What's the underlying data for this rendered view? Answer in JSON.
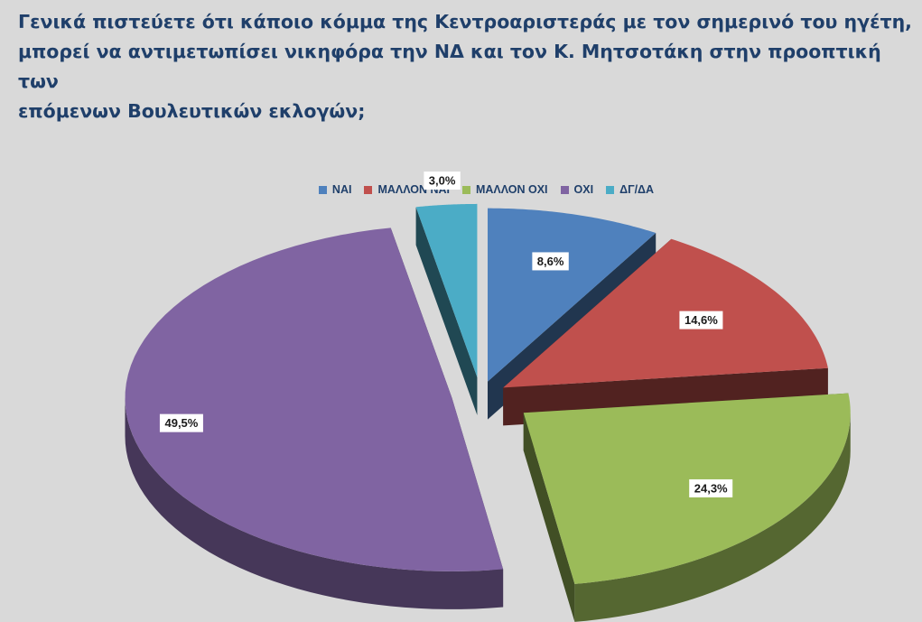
{
  "question": "Γενικά πιστεύετε ότι κάποιο κόμμα της Κεντροαριστεράς με τον σημερινό του ηγέτη,\nμπορεί να αντιμετωπίσει νικηφόρα την ΝΔ και τον Κ. Μητσοτάκη στην προοπτική των\nεπόμενων Βουλευτικών εκλογών;",
  "chart_data": {
    "type": "pie",
    "style": "3d-exploded",
    "legend_position": "top",
    "categories": [
      "ΝΑΙ",
      "ΜΑΛΛΟΝ ΝΑΙ",
      "ΜΑΛΛΟΝ ΟΧΙ",
      "ΟΧΙ",
      "ΔΓ/ΔΑ"
    ],
    "values": [
      8.6,
      14.6,
      24.3,
      49.5,
      3.0
    ],
    "labels": [
      "8,6%",
      "14,6%",
      "24,3%",
      "49,5%",
      "3,0%"
    ],
    "colors": [
      "#4f81bd",
      "#c0504d",
      "#9bbb59",
      "#8064a2",
      "#4bacc6"
    ]
  }
}
